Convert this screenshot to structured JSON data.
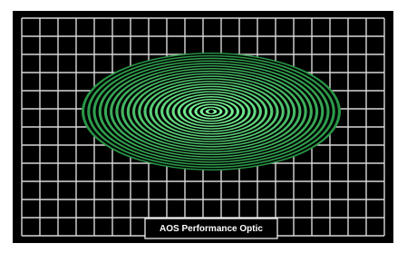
{
  "label": "AOS Performance Optic"
}
